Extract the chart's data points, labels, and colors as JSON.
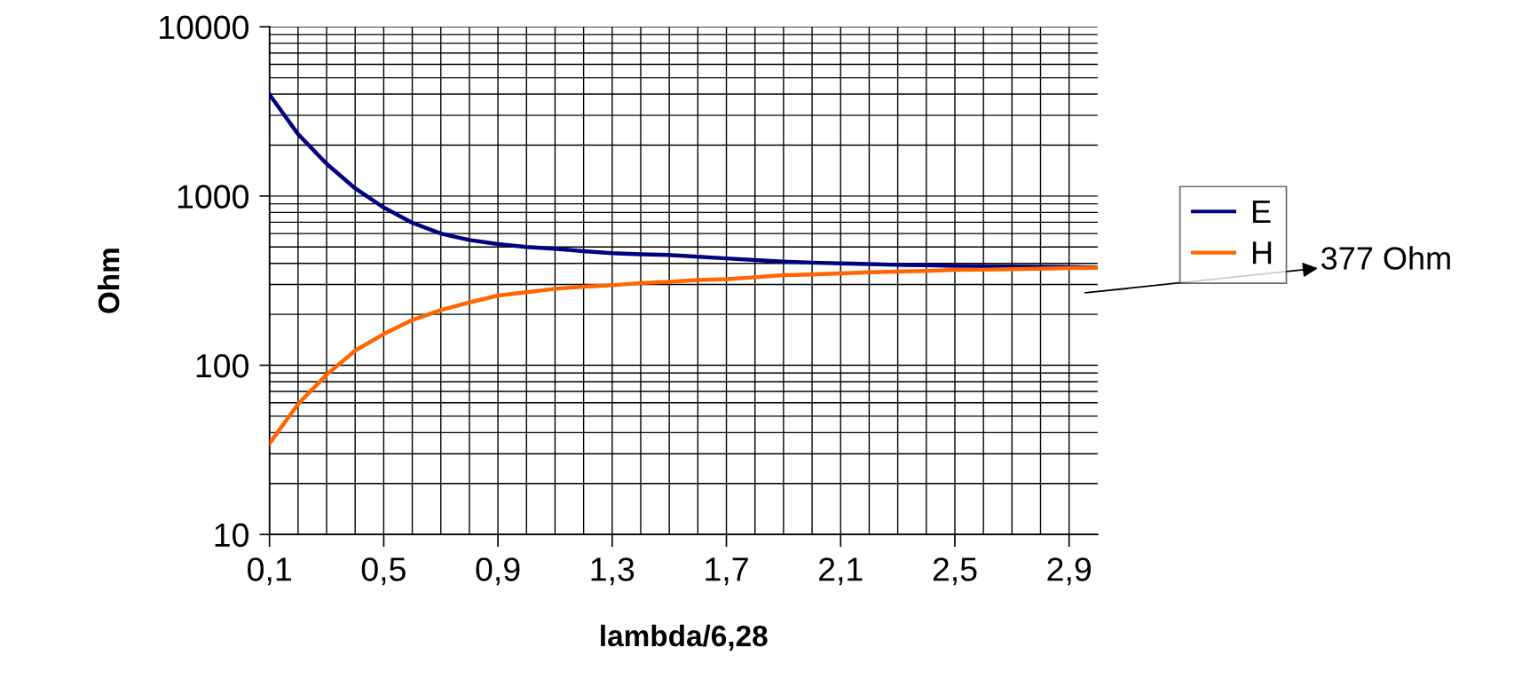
{
  "chart_data": {
    "type": "line",
    "xlabel": "lambda/6,28",
    "ylabel": "Ohm",
    "x": [
      0.1,
      0.2,
      0.3,
      0.4,
      0.5,
      0.6,
      0.7,
      0.8,
      0.9,
      1.0,
      1.1,
      1.2,
      1.3,
      1.4,
      1.5,
      1.6,
      1.7,
      1.8,
      1.9,
      2.0,
      2.1,
      2.2,
      2.3,
      2.4,
      2.5,
      2.6,
      2.7,
      2.8,
      2.9,
      3.0
    ],
    "series": [
      {
        "name": "E",
        "color": "#000080",
        "values": [
          3980,
          2320,
          1550,
          1110,
          855,
          695,
          600,
          550,
          520,
          500,
          488,
          472,
          459,
          453,
          448,
          438,
          428,
          418,
          410,
          404,
          400,
          396,
          392,
          390,
          387,
          385,
          384,
          382,
          381,
          378
        ]
      },
      {
        "name": "H",
        "color": "#ff6600",
        "values": [
          34.5,
          59,
          88,
          122,
          153,
          185,
          212,
          235,
          258,
          270,
          283,
          291,
          297,
          306,
          311,
          319,
          323,
          331,
          341,
          344,
          349,
          354,
          358,
          361,
          366,
          367,
          370,
          372,
          375,
          376
        ]
      }
    ],
    "log": "y",
    "xlim": [
      0.1,
      3.0
    ],
    "xticks": [
      {
        "value": 0.1,
        "label": "0,1"
      },
      {
        "value": 0.2,
        "label": null
      },
      {
        "value": 0.3,
        "label": null
      },
      {
        "value": 0.4,
        "label": null
      },
      {
        "value": 0.5,
        "label": "0,5"
      },
      {
        "value": 0.6,
        "label": null
      },
      {
        "value": 0.7,
        "label": null
      },
      {
        "value": 0.8,
        "label": null
      },
      {
        "value": 0.9,
        "label": "0,9"
      },
      {
        "value": 1.0,
        "label": null
      },
      {
        "value": 1.1,
        "label": null
      },
      {
        "value": 1.2,
        "label": null
      },
      {
        "value": 1.3,
        "label": "1,3"
      },
      {
        "value": 1.4,
        "label": null
      },
      {
        "value": 1.5,
        "label": null
      },
      {
        "value": 1.6,
        "label": null
      },
      {
        "value": 1.7,
        "label": "1,7"
      },
      {
        "value": 1.8,
        "label": null
      },
      {
        "value": 1.9,
        "label": null
      },
      {
        "value": 2.0,
        "label": null
      },
      {
        "value": 2.1,
        "label": "2,1"
      },
      {
        "value": 2.2,
        "label": null
      },
      {
        "value": 2.3,
        "label": null
      },
      {
        "value": 2.4,
        "label": null
      },
      {
        "value": 2.5,
        "label": "2,5"
      },
      {
        "value": 2.6,
        "label": null
      },
      {
        "value": 2.7,
        "label": null
      },
      {
        "value": 2.8,
        "label": null
      },
      {
        "value": 2.9,
        "label": "2,9"
      }
    ],
    "ylim": [
      10,
      10000
    ],
    "yticks": [
      10,
      {
        "value": 20,
        "label": null
      },
      {
        "value": 30,
        "label": null
      },
      {
        "value": 40,
        "label": null
      },
      {
        "value": 50,
        "label": null
      },
      {
        "value": 60,
        "label": null
      },
      {
        "value": 70,
        "label": null
      },
      {
        "value": 80,
        "label": null
      },
      {
        "value": 90,
        "label": null
      },
      100,
      {
        "value": 200,
        "label": null
      },
      {
        "value": 300,
        "label": null
      },
      {
        "value": 400,
        "label": null
      },
      {
        "value": 500,
        "label": null
      },
      {
        "value": 600,
        "label": null
      },
      {
        "value": 700,
        "label": null
      },
      {
        "value": 800,
        "label": null
      },
      {
        "value": 900,
        "label": null
      },
      1000,
      {
        "value": 2000,
        "label": null
      },
      {
        "value": 3000,
        "label": null
      },
      {
        "value": 4000,
        "label": null
      },
      {
        "value": 5000,
        "label": null
      },
      {
        "value": 6000,
        "label": null
      },
      {
        "value": 7000,
        "label": null
      },
      {
        "value": 8000,
        "label": null
      },
      {
        "value": 9000,
        "label": null
      },
      10000
    ],
    "grid": true,
    "legend": "right",
    "marker": "none",
    "line_style": "solid",
    "annotations": [
      "377 Ohm"
    ]
  }
}
